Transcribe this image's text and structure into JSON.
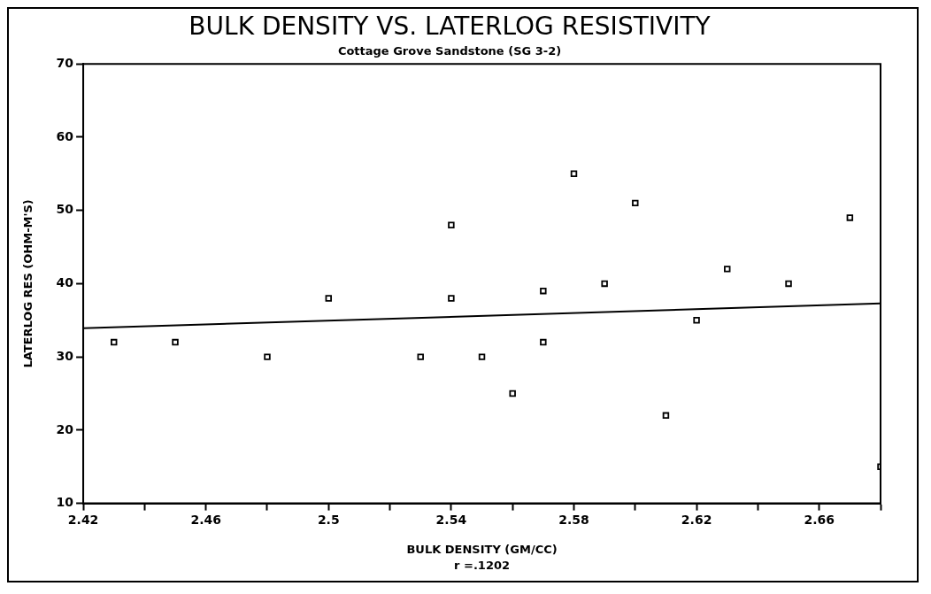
{
  "chart_data": {
    "type": "scatter",
    "title": "BULK DENSITY VS. LATERLOG RESISTIVITY",
    "subtitle": "Cottage Grove Sandstone (SG 3-2)",
    "xlabel": "BULK DENSITY (GM/CC)",
    "ylabel": "LATERLOG RES (OHM-M'S)",
    "annotations": [
      "r =.1202"
    ],
    "x": [
      2.43,
      2.45,
      2.48,
      2.5,
      2.53,
      2.54,
      2.54,
      2.55,
      2.56,
      2.57,
      2.57,
      2.58,
      2.59,
      2.6,
      2.61,
      2.62,
      2.63,
      2.65,
      2.67,
      2.68
    ],
    "series": [
      {
        "type": "scatter",
        "color": "#000000",
        "marker": "square",
        "values": [
          32,
          32,
          30,
          38,
          30,
          48,
          38,
          30,
          25,
          39,
          32,
          55,
          40,
          51,
          22,
          35,
          42,
          40,
          49,
          15
        ]
      },
      {
        "type": "line",
        "color": "#000000",
        "marker": "none",
        "x": [
          2.42,
          2.68
        ],
        "values": [
          33.9,
          37.3
        ]
      }
    ],
    "xlim": [
      2.42,
      2.68
    ],
    "xticks": [
      2.42,
      {
        "value": 2.44,
        "label": null
      },
      2.46,
      {
        "value": 2.48,
        "label": null
      },
      2.5,
      {
        "value": 2.52,
        "label": null
      },
      2.54,
      {
        "value": 2.56,
        "label": null
      },
      2.58,
      {
        "value": 2.6,
        "label": null
      },
      2.62,
      {
        "value": 2.64,
        "label": null
      },
      2.66,
      {
        "value": 2.68,
        "label": null
      }
    ],
    "ylim": [
      10,
      70
    ],
    "yticks": [
      10,
      20,
      30,
      40,
      50,
      60,
      70
    ],
    "grid": false,
    "legend": false
  }
}
